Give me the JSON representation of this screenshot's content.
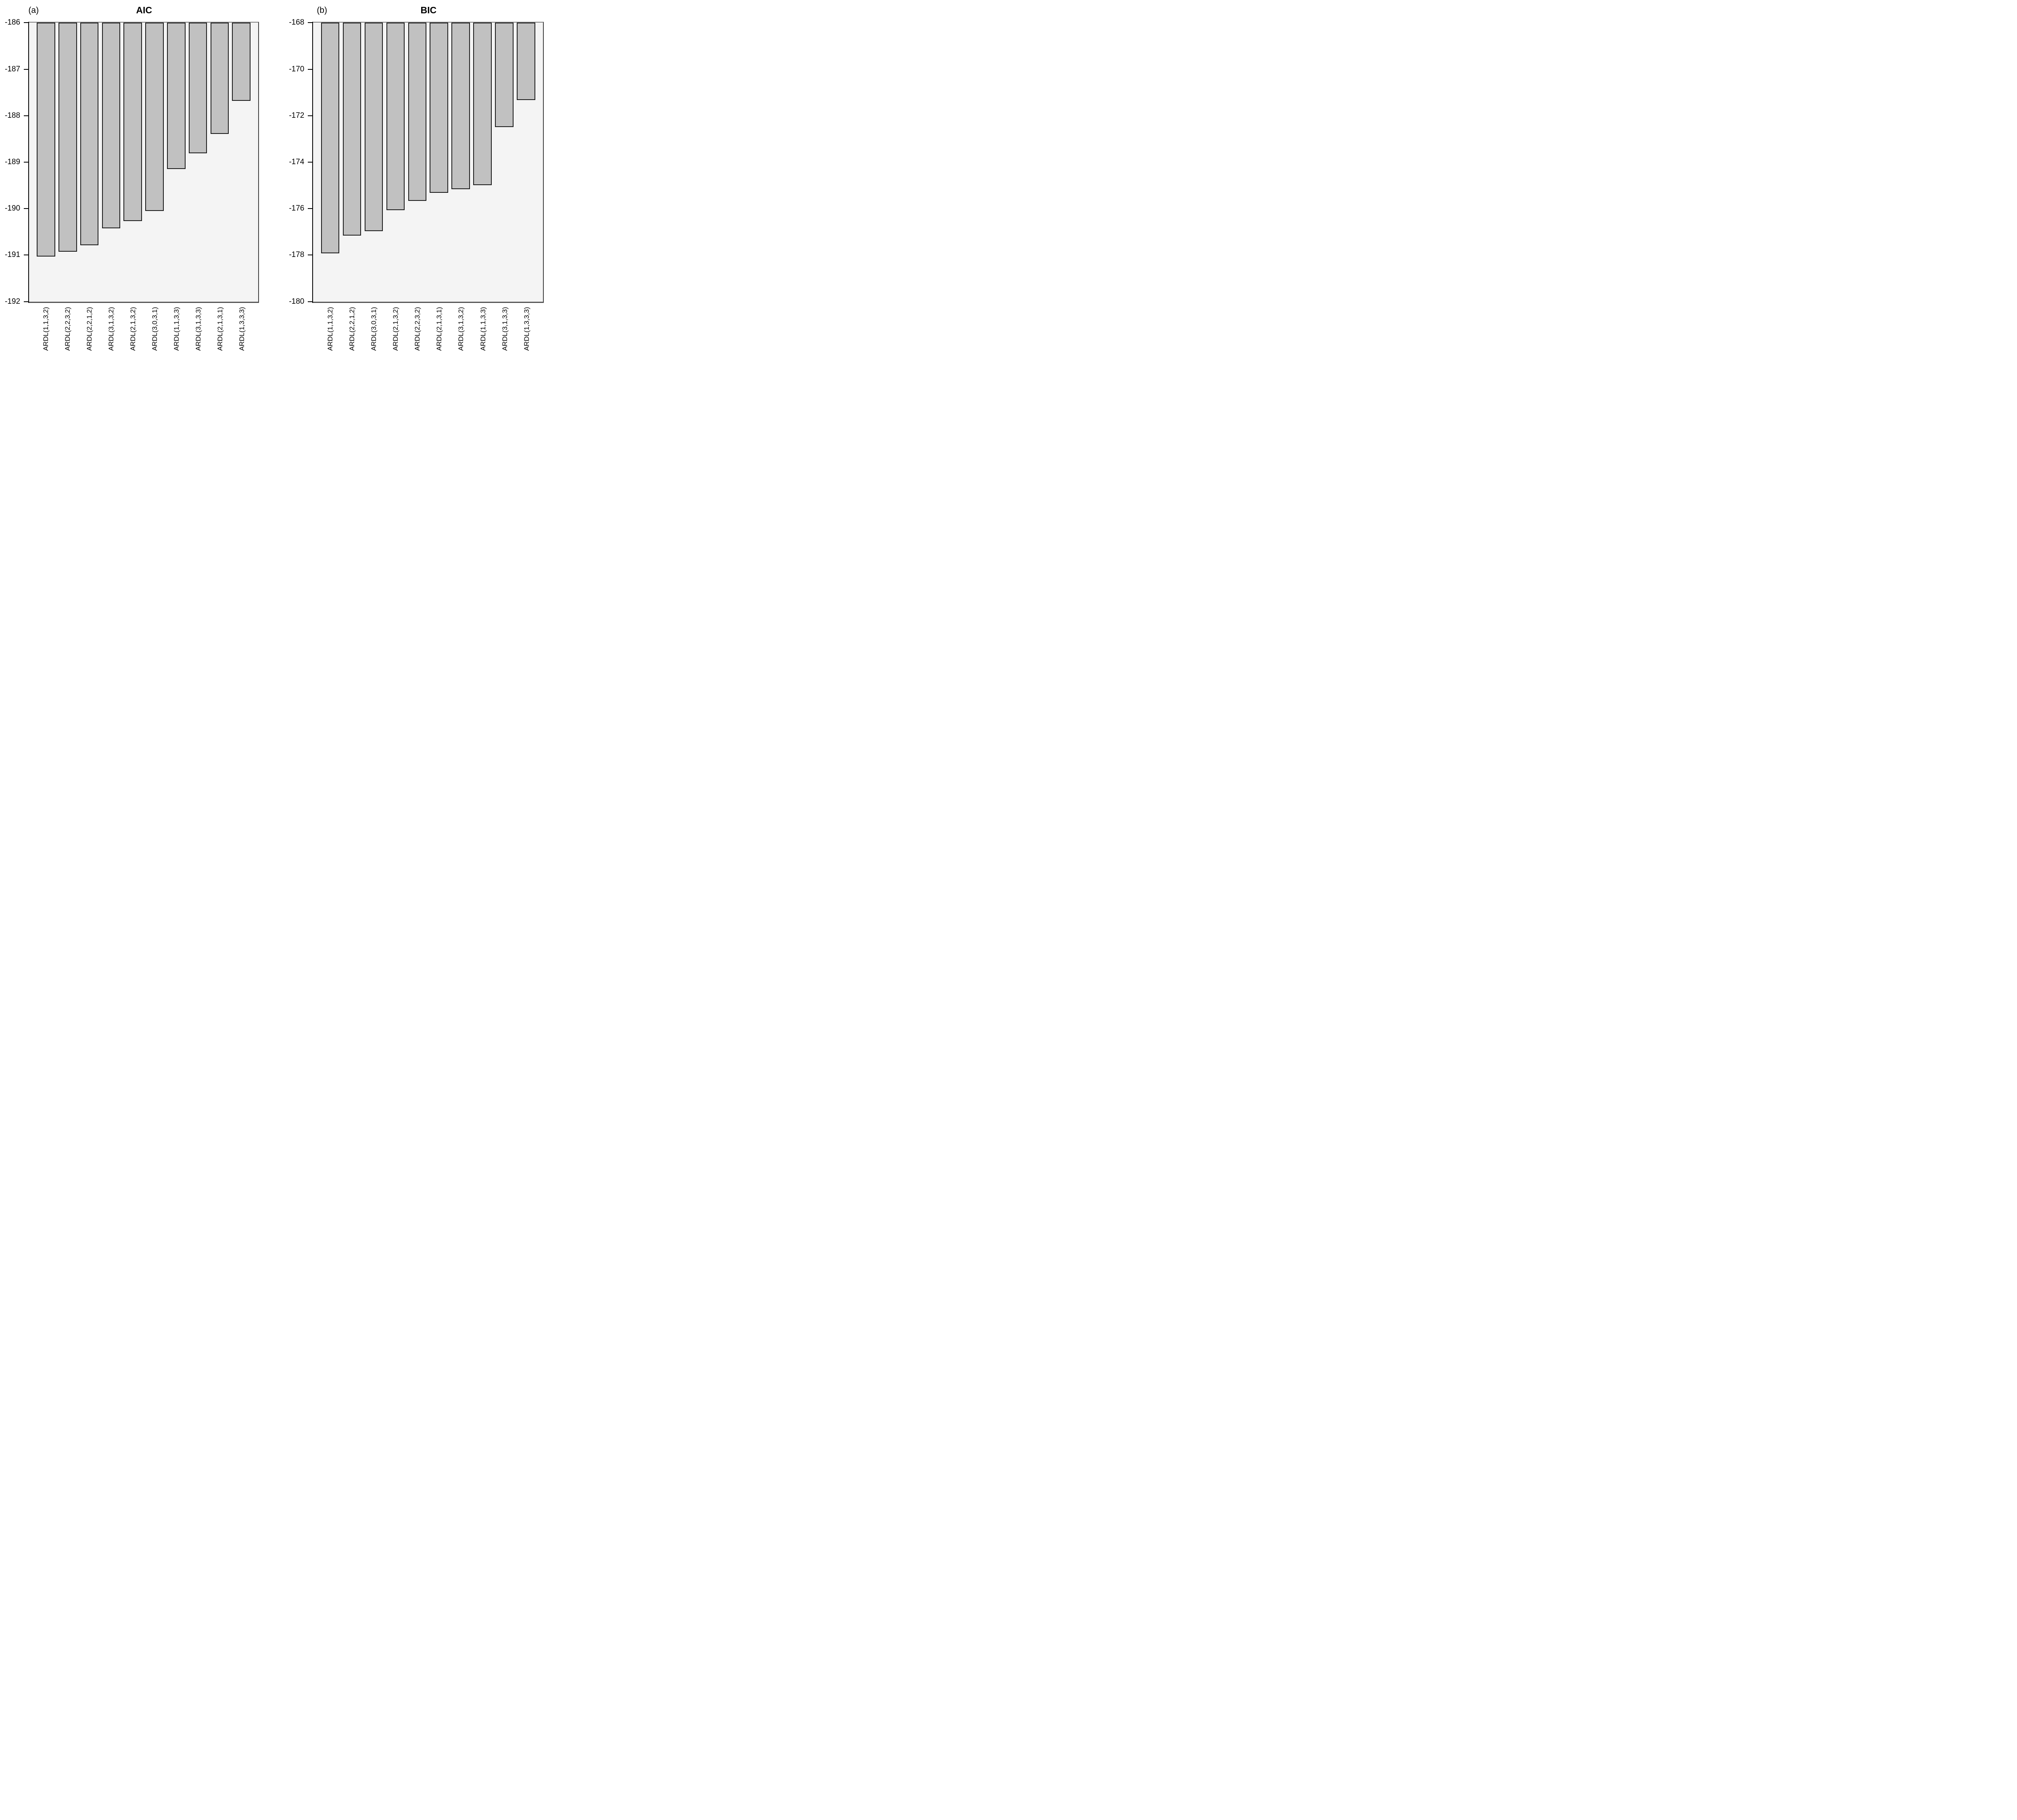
{
  "figure": {
    "panels": [
      {
        "panel_label": "(a)",
        "title": "AIC"
      },
      {
        "panel_label": "(b)",
        "title": "BIC"
      }
    ],
    "colors": {
      "bar_fill": "#c1c1c1",
      "bar_border": "#1a1a1a",
      "panel_bg": "#f4f4f4",
      "panel_border": "#6e6e6e",
      "axis": "#000000",
      "text": "#000000",
      "page_bg": "#ffffff"
    }
  },
  "chart_data": [
    {
      "type": "bar",
      "panel_label": "(a)",
      "title": "AIC",
      "categories": [
        "ARDL(1,1,3,2)",
        "ARDL(2,2,3,2)",
        "ARDL(2,2,1,2)",
        "ARDL(3,1,3,2)",
        "ARDL(2,1,3,2)",
        "ARDL(3,0,3,1)",
        "ARDL(1,1,3,3)",
        "ARDL(3,1,3,3)",
        "ARDL(2,1,3,1)",
        "ARDL(1,3,3,3)"
      ],
      "values": [
        -191.03,
        -190.93,
        -190.79,
        -190.42,
        -190.27,
        -190.05,
        -189.15,
        -188.81,
        -188.39,
        -187.68
      ],
      "ylim": [
        -192,
        -186
      ],
      "y_ticks": [
        -186,
        -187,
        -188,
        -189,
        -190,
        -191,
        -192
      ],
      "bars_hang_from_top": true,
      "xlabel": "",
      "ylabel": "",
      "grid": false,
      "legend": null
    },
    {
      "type": "bar",
      "panel_label": "(b)",
      "title": "BIC",
      "categories": [
        "ARDL(1,1,3,2)",
        "ARDL(2,2,1,2)",
        "ARDL(3,0,3,1)",
        "ARDL(2,1,3,2)",
        "ARDL(2,2,3,2)",
        "ARDL(2,1,3,1)",
        "ARDL(3,1,3,2)",
        "ARDL(1,1,3,3)",
        "ARDL(3,1,3,3)",
        "ARDL(1,3,3,3)"
      ],
      "values": [
        -177.92,
        -177.16,
        -176.96,
        -176.07,
        -175.66,
        -175.32,
        -175.16,
        -174.98,
        -172.49,
        -171.32
      ],
      "ylim": [
        -180,
        -168
      ],
      "y_ticks": [
        -168,
        -170,
        -172,
        -174,
        -176,
        -178,
        -180
      ],
      "bars_hang_from_top": true,
      "xlabel": "",
      "ylabel": "",
      "grid": false,
      "legend": null
    }
  ]
}
